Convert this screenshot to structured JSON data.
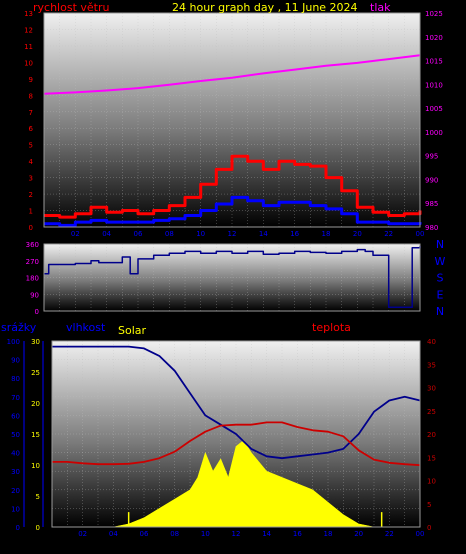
{
  "header": {
    "left_label": "rychlost větru",
    "title": "24 hour graph day , 11 June 2024",
    "right_label": "tlak"
  },
  "bottom_labels": {
    "rain": "srážky",
    "humidity": "vlhkost",
    "solar": "Solar",
    "temperature": "teplota"
  },
  "colors": {
    "bg": "#000000",
    "panel_top": "#e8e8e8",
    "panel_bottom": "#000000",
    "gust": "#ff0000",
    "wind": "#0000ff",
    "pressure": "#ff00ff",
    "direction": "#00008b",
    "humidity": "#00008b",
    "temperature": "#cc0000",
    "solar": "#ffff00",
    "rain": "#ffff00",
    "left_axis": "#ff0000",
    "right_axis": "#ff00ff",
    "x_axis": "#0000ff",
    "title": "#ffff00",
    "dir_letters": "#0000ff"
  },
  "chart_data": [
    {
      "type": "line",
      "name": "wind",
      "title": "24 hour graph day , 11 June 2024",
      "x_ticks": [
        "02",
        "04",
        "06",
        "08",
        "10",
        "12",
        "14",
        "16",
        "18",
        "20",
        "22",
        "00"
      ],
      "y_left_ticks": [
        "0",
        "1",
        "2",
        "3",
        "4",
        "5",
        "6",
        "7",
        "8",
        "9",
        "10",
        "11",
        "12",
        "13"
      ],
      "y_left_range": [
        0,
        13
      ],
      "y_right_ticks": [
        "980",
        "985",
        "990",
        "995",
        "1000",
        "1005",
        "1010",
        "1015",
        "1020",
        "1025"
      ],
      "y_right_range": [
        980,
        1025
      ],
      "series": [
        {
          "name": "gust",
          "x": [
            0,
            1,
            2,
            3,
            4,
            5,
            6,
            7,
            8,
            9,
            10,
            11,
            12,
            13,
            14,
            15,
            16,
            17,
            18,
            19,
            20,
            21,
            22,
            23,
            24
          ],
          "values": [
            0.7,
            0.6,
            0.8,
            1.2,
            0.9,
            1.0,
            0.8,
            1.0,
            1.3,
            1.8,
            2.6,
            3.5,
            4.3,
            4.0,
            3.5,
            4.0,
            3.8,
            3.7,
            3.0,
            2.2,
            1.2,
            0.9,
            0.7,
            0.8,
            1.0
          ]
        },
        {
          "name": "wind",
          "x": [
            0,
            1,
            2,
            3,
            4,
            5,
            6,
            7,
            8,
            9,
            10,
            11,
            12,
            13,
            14,
            15,
            16,
            17,
            18,
            19,
            20,
            21,
            22,
            23,
            24
          ],
          "values": [
            0.2,
            0.1,
            0.3,
            0.4,
            0.3,
            0.3,
            0.3,
            0.4,
            0.5,
            0.7,
            1.0,
            1.4,
            1.8,
            1.6,
            1.3,
            1.5,
            1.5,
            1.3,
            1.1,
            0.8,
            0.3,
            0.3,
            0.2,
            0.2,
            0.3
          ]
        },
        {
          "name": "pressure",
          "axis": "right",
          "x": [
            0,
            2,
            4,
            6,
            8,
            10,
            12,
            14,
            16,
            18,
            20,
            22,
            24
          ],
          "values": [
            1008.0,
            1008.3,
            1008.7,
            1009.2,
            1009.9,
            1010.7,
            1011.4,
            1012.3,
            1013.1,
            1013.9,
            1014.5,
            1015.3,
            1016.1
          ]
        }
      ]
    },
    {
      "type": "line",
      "name": "wind-direction",
      "y_ticks": [
        "360",
        "270",
        "180",
        "90",
        "0"
      ],
      "y_range": [
        0,
        360
      ],
      "dir_labels": [
        "N",
        "W",
        "S",
        "E",
        "N"
      ],
      "series": [
        {
          "name": "direction",
          "x": [
            0,
            0.3,
            1,
            2,
            3,
            3.5,
            5,
            5.5,
            6,
            7,
            8,
            9,
            10,
            11,
            12,
            13,
            14,
            15,
            16,
            17,
            18,
            19,
            20,
            20.5,
            21,
            22,
            22.5,
            23,
            23.5,
            24
          ],
          "values": [
            200,
            250,
            250,
            255,
            270,
            260,
            290,
            200,
            280,
            300,
            310,
            320,
            310,
            320,
            310,
            320,
            305,
            310,
            320,
            315,
            310,
            320,
            330,
            320,
            300,
            20,
            20,
            20,
            340,
            350
          ]
        }
      ]
    },
    {
      "type": "line",
      "name": "weather",
      "y_rain_ticks": [
        "0",
        "10",
        "20",
        "30",
        "40",
        "50",
        "60",
        "70",
        "80",
        "90",
        "100"
      ],
      "y_rain_range": [
        0,
        100
      ],
      "y_humidity_ticks": [
        "0",
        "5",
        "10",
        "15",
        "20",
        "25",
        "30"
      ],
      "y_humidity_range": [
        0,
        30
      ],
      "y_temperature_ticks": [
        "0",
        "5",
        "10",
        "15",
        "20",
        "25",
        "30",
        "35",
        "40"
      ],
      "y_temperature_range": [
        0,
        40
      ],
      "series": [
        {
          "name": "humidity",
          "x": [
            0,
            1,
            2,
            3,
            4,
            5,
            6,
            7,
            8,
            9,
            10,
            11,
            12,
            13,
            14,
            15,
            16,
            17,
            18,
            19,
            20,
            21,
            22,
            23,
            24
          ],
          "values": [
            97,
            97,
            97,
            97,
            97,
            97,
            96,
            92,
            84,
            72,
            60,
            55,
            50,
            42,
            38,
            37,
            38,
            39,
            40,
            42,
            50,
            62,
            68,
            70,
            68
          ]
        },
        {
          "name": "temperature",
          "x": [
            0,
            1,
            2,
            3,
            4,
            5,
            6,
            7,
            8,
            9,
            10,
            11,
            12,
            13,
            14,
            15,
            16,
            17,
            18,
            19,
            20,
            21,
            22,
            23,
            24
          ],
          "values": [
            14.0,
            14.0,
            13.7,
            13.5,
            13.5,
            13.6,
            14.0,
            14.8,
            16.2,
            18.5,
            20.5,
            21.8,
            22.0,
            22.0,
            22.5,
            22.5,
            21.5,
            20.8,
            20.5,
            19.5,
            16.5,
            14.5,
            13.8,
            13.5,
            13.3
          ]
        },
        {
          "name": "solar",
          "x": [
            0,
            1,
            2,
            3,
            4,
            5,
            6,
            7,
            8,
            9,
            9.5,
            10,
            10.5,
            11,
            11.5,
            12,
            12.5,
            13,
            14,
            15,
            16,
            17,
            18,
            19,
            20,
            21,
            22,
            23,
            24
          ],
          "values": [
            0,
            0,
            0,
            0,
            0,
            0.5,
            1.5,
            3,
            4.5,
            6,
            8,
            12,
            9,
            11,
            8,
            13,
            14,
            12,
            9,
            8,
            7,
            6,
            4,
            2,
            0.5,
            0,
            0,
            0,
            0
          ]
        },
        {
          "name": "rain-marks",
          "x": [
            5.0,
            21.5
          ],
          "values": [
            8,
            8
          ]
        }
      ]
    }
  ]
}
